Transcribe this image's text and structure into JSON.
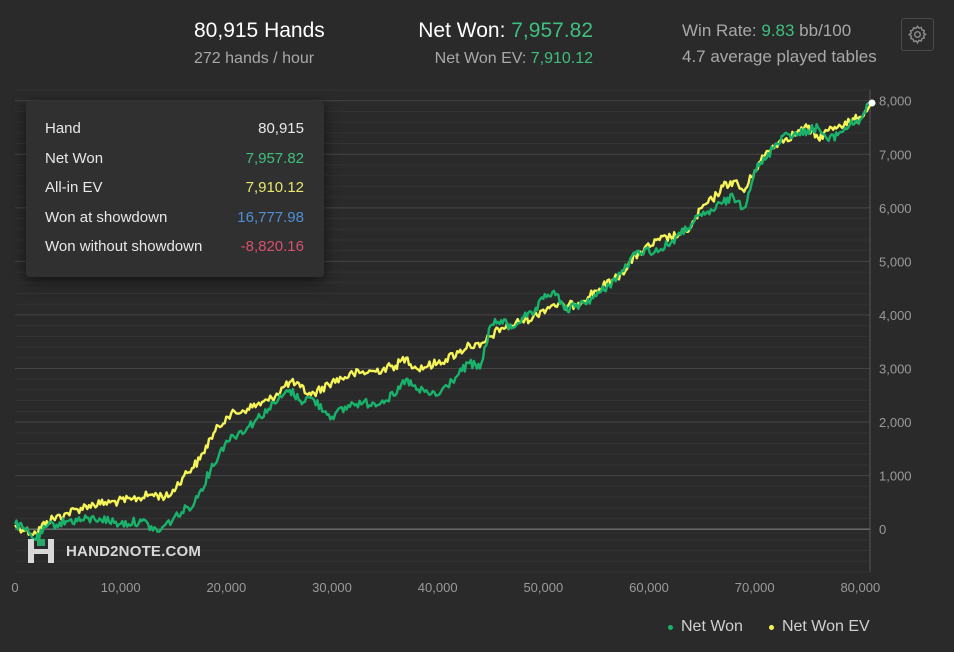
{
  "header": {
    "hands_title": "80,915 Hands",
    "hands_rate": "272 hands / hour",
    "net_won_label": "Net Won: ",
    "net_won_value": "7,957.82",
    "net_won_ev_label": "Net Won  EV: ",
    "net_won_ev_value": "7,910.12",
    "win_rate_label": "Win Rate: ",
    "win_rate_value": "9.83",
    "win_rate_unit": " bb/100",
    "tables_text": "4.7 average played tables"
  },
  "settings_icon": "gear-icon",
  "tooltip": {
    "rows": [
      {
        "label": "Hand",
        "value": "80,915",
        "color": "#e8e8e8"
      },
      {
        "label": "Net Won",
        "value": "7,957.82",
        "color": "#3fbf7f"
      },
      {
        "label": "All-in EV",
        "value": "7,910.12",
        "color": "#e8e86a"
      },
      {
        "label": "Won at showdown",
        "value": "16,777.98",
        "color": "#4f8fd6"
      },
      {
        "label": "Won without showdown",
        "value": "-8,820.16",
        "color": "#d85070"
      }
    ]
  },
  "watermark": {
    "text": "HAND2NOTE.COM",
    "icon": "h2n-logo-icon"
  },
  "legend": [
    {
      "label": "Net Won",
      "color": "#19b26b"
    },
    {
      "label": "Net Won  EV",
      "color": "#f5f55a"
    }
  ],
  "colors": {
    "background": "#2a2a2a",
    "net_won": "#19b26b",
    "net_won_ev": "#f5f55a",
    "grid": "#3d3d3d"
  },
  "chart_data": {
    "type": "line",
    "xlim": [
      0,
      80915
    ],
    "ylim": [
      -800,
      8200
    ],
    "x_ticks": [
      0,
      10000,
      20000,
      30000,
      40000,
      50000,
      60000,
      70000,
      80000
    ],
    "x_tick_labels": [
      "0",
      "10,000",
      "20,000",
      "30,000",
      "40,000",
      "50,000",
      "60,000",
      "70,000",
      "80,000"
    ],
    "y_ticks": [
      0,
      1000,
      2000,
      3000,
      4000,
      5000,
      6000,
      7000,
      8000
    ],
    "y_tick_labels": [
      "0",
      "1,000",
      "2,000",
      "3,000",
      "4,000",
      "5,000",
      "6,000",
      "7,000",
      "8,000"
    ],
    "grid": true,
    "legend_position": "bottom-right",
    "series": [
      {
        "name": "Net Won",
        "color": "#19b26b",
        "x": [
          0,
          1000,
          2000,
          3000,
          5000,
          8000,
          10000,
          12000,
          13500,
          15000,
          17000,
          18500,
          20000,
          22000,
          24000,
          26000,
          27000,
          28000,
          30000,
          32000,
          34000,
          36000,
          37000,
          38000,
          40000,
          42000,
          43000,
          44000,
          45000,
          46000,
          47000,
          48000,
          49000,
          50000,
          51000,
          52000,
          53000,
          55000,
          57000,
          59000,
          61000,
          63000,
          64000,
          65000,
          66000,
          67000,
          68000,
          69000,
          70000,
          71000,
          72000,
          73000,
          74000,
          75000,
          76000,
          77000,
          78000,
          79000,
          80000,
          80915
        ],
        "y": [
          100,
          -20,
          -200,
          50,
          150,
          200,
          100,
          150,
          -50,
          200,
          500,
          1100,
          1650,
          1900,
          2250,
          2600,
          2400,
          2450,
          2100,
          2350,
          2350,
          2500,
          2800,
          2600,
          2500,
          2900,
          3100,
          3000,
          3800,
          3900,
          3750,
          3950,
          4000,
          4300,
          4450,
          4100,
          4150,
          4350,
          4700,
          5200,
          5200,
          5500,
          5700,
          5850,
          5950,
          6100,
          6200,
          6000,
          6700,
          6900,
          7200,
          7400,
          7350,
          7450,
          7500,
          7250,
          7400,
          7550,
          7650,
          7957.82
        ]
      },
      {
        "name": "Net Won  EV",
        "color": "#f5f55a",
        "x": [
          0,
          1000,
          2000,
          3000,
          5000,
          7000,
          9000,
          11000,
          13000,
          14500,
          16000,
          17500,
          18500,
          20000,
          22000,
          24000,
          26000,
          27000,
          28000,
          30000,
          32000,
          34000,
          36000,
          37000,
          38000,
          40000,
          42000,
          43000,
          44000,
          45000,
          46000,
          47000,
          48000,
          49000,
          50000,
          51000,
          52000,
          53000,
          55000,
          57000,
          59000,
          61000,
          63000,
          64000,
          65000,
          66000,
          67000,
          68000,
          69000,
          70000,
          71000,
          72000,
          73000,
          74000,
          75000,
          76000,
          77000,
          78000,
          79000,
          80000,
          80915
        ],
        "y": [
          80,
          -20,
          -80,
          150,
          300,
          450,
          500,
          550,
          650,
          600,
          1000,
          1300,
          1700,
          2100,
          2250,
          2400,
          2750,
          2650,
          2500,
          2750,
          2900,
          2950,
          3050,
          3200,
          3000,
          3100,
          3300,
          3450,
          3400,
          3600,
          3750,
          3800,
          3900,
          3950,
          4100,
          4200,
          4150,
          4200,
          4450,
          4700,
          5150,
          5400,
          5500,
          5650,
          6000,
          6150,
          6400,
          6500,
          6300,
          6700,
          7000,
          7200,
          7300,
          7400,
          7500,
          7300,
          7450,
          7550,
          7600,
          7700,
          7910.12
        ]
      }
    ]
  }
}
